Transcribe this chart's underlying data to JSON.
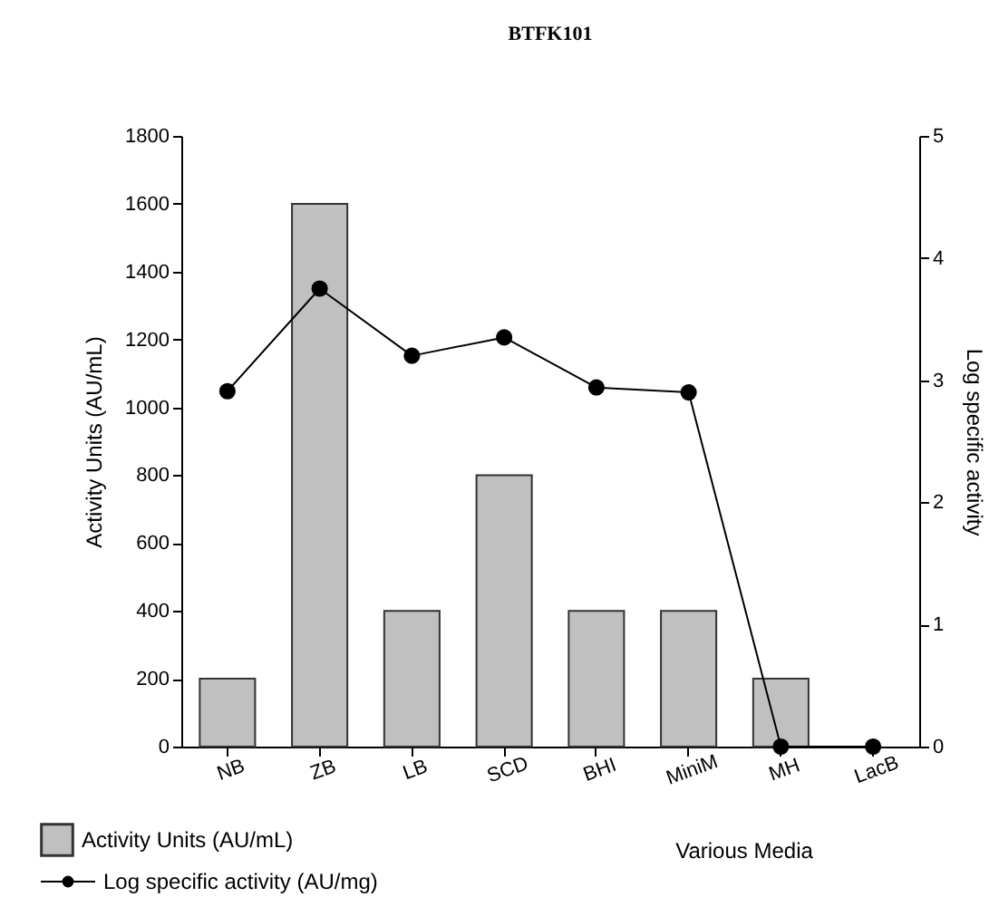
{
  "chart_data": {
    "type": "bar",
    "title": "BTFK101",
    "xlabel": "Various Media",
    "ylabel": "Activity Units (AU/mL)",
    "y2label": "Log specific activity",
    "categories": [
      "NB",
      "ZB",
      "LB",
      "SCD",
      "BHI",
      "MiniM",
      "MH",
      "LacB"
    ],
    "series": [
      {
        "name": "Activity Units (AU/mL)",
        "color": "#c0c0c0",
        "values": [
          200,
          1600,
          400,
          800,
          400,
          400,
          200,
          0
        ]
      },
      {
        "name": "Log specific activity (AU/mg)",
        "type": "line",
        "axis": "y2",
        "color": "#000000",
        "values": [
          2.91,
          3.75,
          3.2,
          3.35,
          2.94,
          2.9,
          0,
          0
        ]
      }
    ],
    "ylim": [
      0,
      1800
    ],
    "yticks": [
      0,
      200,
      400,
      600,
      800,
      1000,
      1200,
      1400,
      1600,
      1800
    ],
    "y2lim": [
      0,
      5
    ],
    "y2ticks": [
      0,
      1,
      2,
      3,
      4,
      5
    ],
    "grid": false,
    "legend": "bottom left",
    "marker": "circle",
    "line_style": "solid"
  }
}
